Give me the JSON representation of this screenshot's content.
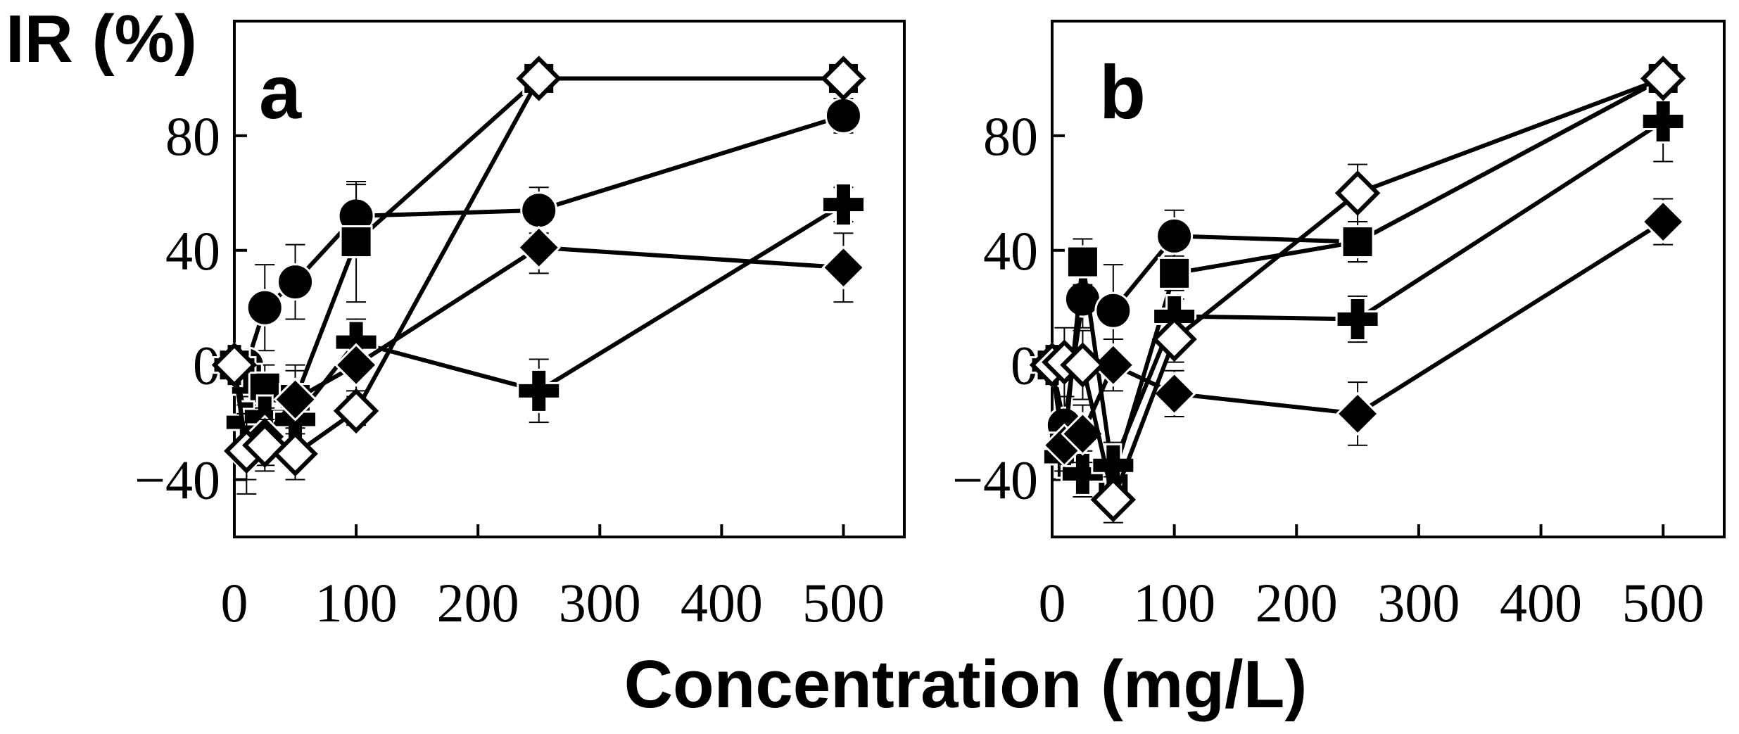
{
  "figure": {
    "ylabel": "IR (%)",
    "xlabel": "Concentration (mg/L)"
  },
  "chart_data": [
    {
      "type": "scatter",
      "panel": "a",
      "xlim": [
        0,
        550
      ],
      "ylim": [
        -60,
        120
      ],
      "xticks": [
        0,
        100,
        200,
        300,
        400,
        500
      ],
      "yticks": [
        -40,
        0,
        40,
        80
      ],
      "ytick_labels": [
        "−40",
        "0",
        "40",
        "80"
      ],
      "series": [
        {
          "name": "filled-circle",
          "marker": "circle",
          "x": [
            0,
            10,
            25,
            50,
            100,
            250,
            500
          ],
          "y": [
            0,
            0,
            20,
            29,
            52,
            54,
            87
          ],
          "err": [
            0,
            0,
            15,
            13,
            11,
            8,
            6
          ]
        },
        {
          "name": "filled-square",
          "marker": "square",
          "x": [
            0,
            10,
            25,
            50,
            100,
            250,
            500
          ],
          "y": [
            0,
            -5,
            -8,
            -12,
            43,
            100,
            100
          ],
          "err": [
            0,
            6,
            8,
            10,
            21,
            0,
            0
          ]
        },
        {
          "name": "filled-cross",
          "marker": "cross",
          "x": [
            0,
            10,
            25,
            50,
            100,
            250,
            500
          ],
          "y": [
            0,
            -20,
            -18,
            -19,
            8,
            -9,
            56
          ],
          "err": [
            0,
            6,
            7,
            8,
            8,
            11,
            6
          ]
        },
        {
          "name": "filled-diamond",
          "marker": "diamond",
          "x": [
            0,
            10,
            25,
            50,
            100,
            250,
            500
          ],
          "y": [
            0,
            -31,
            -25,
            -12,
            0,
            41,
            34
          ],
          "err": [
            0,
            14,
            10,
            12,
            9,
            9,
            12
          ]
        },
        {
          "name": "open-diamond",
          "marker": "open-diamond",
          "x": [
            0,
            10,
            25,
            50,
            100,
            250,
            500
          ],
          "y": [
            0,
            -30,
            -28,
            -31,
            -16,
            100,
            100
          ],
          "err": [
            0,
            10,
            9,
            9,
            5,
            0,
            0
          ]
        }
      ]
    },
    {
      "type": "scatter",
      "panel": "b",
      "xlim": [
        0,
        550
      ],
      "ylim": [
        -60,
        120
      ],
      "xticks": [
        0,
        100,
        200,
        300,
        400,
        500
      ],
      "yticks": [
        -40,
        0,
        40,
        80
      ],
      "ytick_labels": [
        "−40",
        "0",
        "40",
        "80"
      ],
      "series": [
        {
          "name": "filled-circle",
          "marker": "circle",
          "x": [
            0,
            10,
            25,
            50,
            100,
            250,
            500
          ],
          "y": [
            0,
            -21,
            23,
            19,
            45,
            43,
            100
          ],
          "err": [
            0,
            10,
            10,
            16,
            9,
            7,
            0
          ]
        },
        {
          "name": "filled-square",
          "marker": "square",
          "x": [
            0,
            10,
            25,
            50,
            100,
            250,
            500
          ],
          "y": [
            0,
            -29,
            36,
            -39,
            32,
            43,
            100
          ],
          "err": [
            0,
            8,
            8,
            9,
            6,
            7,
            5
          ]
        },
        {
          "name": "filled-cross",
          "marker": "cross",
          "x": [
            0,
            10,
            25,
            50,
            100,
            250,
            500
          ],
          "y": [
            0,
            -32,
            -38,
            -35,
            17,
            16,
            85
          ],
          "err": [
            0,
            8,
            8,
            8,
            6,
            8,
            14
          ]
        },
        {
          "name": "filled-diamond",
          "marker": "diamond",
          "x": [
            0,
            10,
            25,
            50,
            100,
            250,
            500
          ],
          "y": [
            0,
            -28,
            -24,
            0,
            -10,
            -17,
            50
          ],
          "err": [
            0,
            9,
            10,
            9,
            8,
            11,
            8
          ]
        },
        {
          "name": "open-diamond",
          "marker": "open-diamond",
          "x": [
            0,
            10,
            25,
            50,
            100,
            250,
            500
          ],
          "y": [
            0,
            1,
            0,
            -47,
            9,
            60,
            100
          ],
          "err": [
            0,
            12,
            12,
            8,
            8,
            10,
            0
          ]
        }
      ]
    }
  ]
}
